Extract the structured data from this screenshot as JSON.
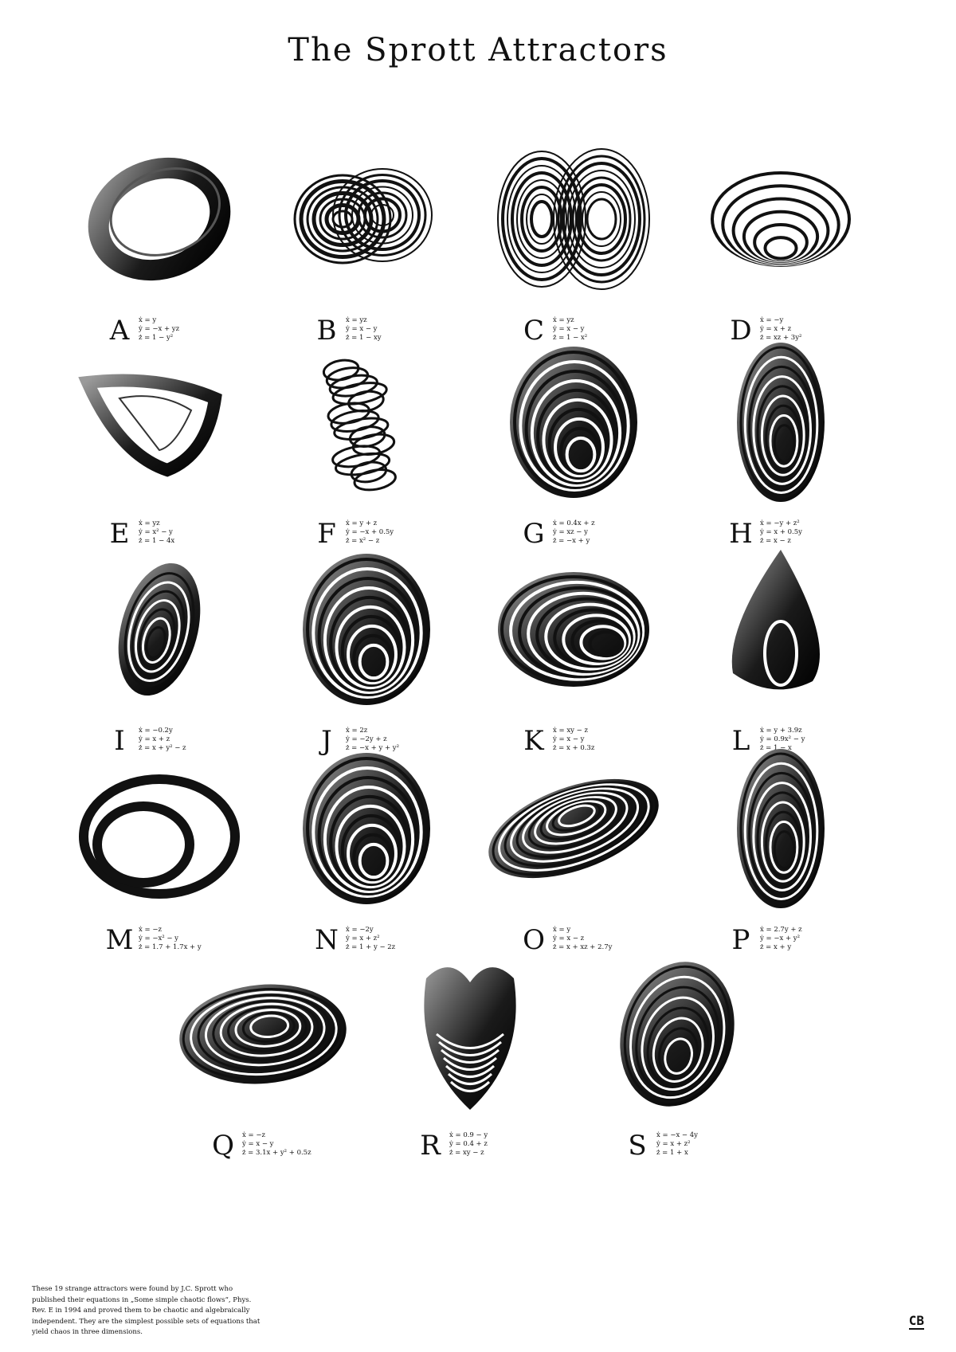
{
  "title": "The Sprott Attractors",
  "attractors": [
    {
      "letter": "A",
      "eq": [
        "ẋ = y",
        "ẏ = −x + yz",
        "ż = 1 − y²"
      ],
      "style": "ring"
    },
    {
      "letter": "B",
      "eq": [
        "ẋ = yz",
        "ẏ = x − y",
        "ż = 1 − xy"
      ],
      "style": "lorenz"
    },
    {
      "letter": "C",
      "eq": [
        "ẋ = yz",
        "ẏ = x − y",
        "ż = 1 − x²"
      ],
      "style": "lorenz2"
    },
    {
      "letter": "D",
      "eq": [
        "ẋ = −y",
        "ẏ = x + z",
        "ż = xz + 3y²"
      ],
      "style": "cone"
    },
    {
      "letter": "E",
      "eq": [
        "ẋ = yz",
        "ẏ = x² − y",
        "ż = 1 − 4x"
      ],
      "style": "band"
    },
    {
      "letter": "F",
      "eq": [
        "ẋ = y + z",
        "ẏ = −x + 0.5y",
        "ż = x² − z"
      ],
      "style": "stack"
    },
    {
      "letter": "G",
      "eq": [
        "ẋ = 0.4x + z",
        "ẏ = xz − y",
        "ż = −x + y"
      ],
      "style": "shell"
    },
    {
      "letter": "H",
      "eq": [
        "ẋ = −y + z²",
        "ẏ = x + 0.5y",
        "ż = x − z"
      ],
      "style": "tall"
    },
    {
      "letter": "I",
      "eq": [
        "ẋ = −0.2y",
        "ẏ = x + z",
        "ż = x + y² − z"
      ],
      "style": "bean"
    },
    {
      "letter": "J",
      "eq": [
        "ẋ = 2z",
        "ẏ = −2y + z",
        "ż = −x + y + y²"
      ],
      "style": "shell"
    },
    {
      "letter": "K",
      "eq": [
        "ẋ = xy − z",
        "ẏ = x − y",
        "ż = x + 0.3z"
      ],
      "style": "wide"
    },
    {
      "letter": "L",
      "eq": [
        "ẋ = y + 3.9z",
        "ẏ = 0.9x² − y",
        "ż = 1 − x"
      ],
      "style": "drop"
    },
    {
      "letter": "M",
      "eq": [
        "ẋ = −z",
        "ẏ = −x² − y",
        "ż = 1.7 + 1.7x + y"
      ],
      "style": "loop"
    },
    {
      "letter": "N",
      "eq": [
        "ẋ = −2y",
        "ẏ = x + z²",
        "ż = 1 + y − 2z"
      ],
      "style": "shell"
    },
    {
      "letter": "O",
      "eq": [
        "ẋ = y",
        "ẏ = x − z",
        "ż = x + xz + 2.7y"
      ],
      "style": "disc"
    },
    {
      "letter": "P",
      "eq": [
        "ẋ = 2.7y + z",
        "ẏ = −x + y²",
        "ż = x + y"
      ],
      "style": "tall"
    },
    {
      "letter": "Q",
      "eq": [
        "ẋ = −z",
        "ẏ = x − y",
        "ż = 3.1x + y² + 0.5z"
      ],
      "style": "bowl"
    },
    {
      "letter": "R",
      "eq": [
        "ẋ = 0.9 − y",
        "ẏ = 0.4 + z",
        "ż = xy − z"
      ],
      "style": "heart"
    },
    {
      "letter": "S",
      "eq": [
        "ẋ = −x − 4y",
        "ẏ = x + z²",
        "ż = 1 + x"
      ],
      "style": "egg"
    }
  ],
  "footer": {
    "lines": [
      "These 19 strange attractors were found by J.C. Sprott who",
      "published their equations in „Some simple chaotic flows“, Phys.",
      "Rev. E in 1994 and proved them to be chaotic and algebraically",
      "independent. They are the simplest possible sets of equations that",
      "yield chaos in three dimensions."
    ]
  },
  "logo": "CB",
  "colors": {
    "ink": "#111111",
    "background": "#ffffff"
  }
}
